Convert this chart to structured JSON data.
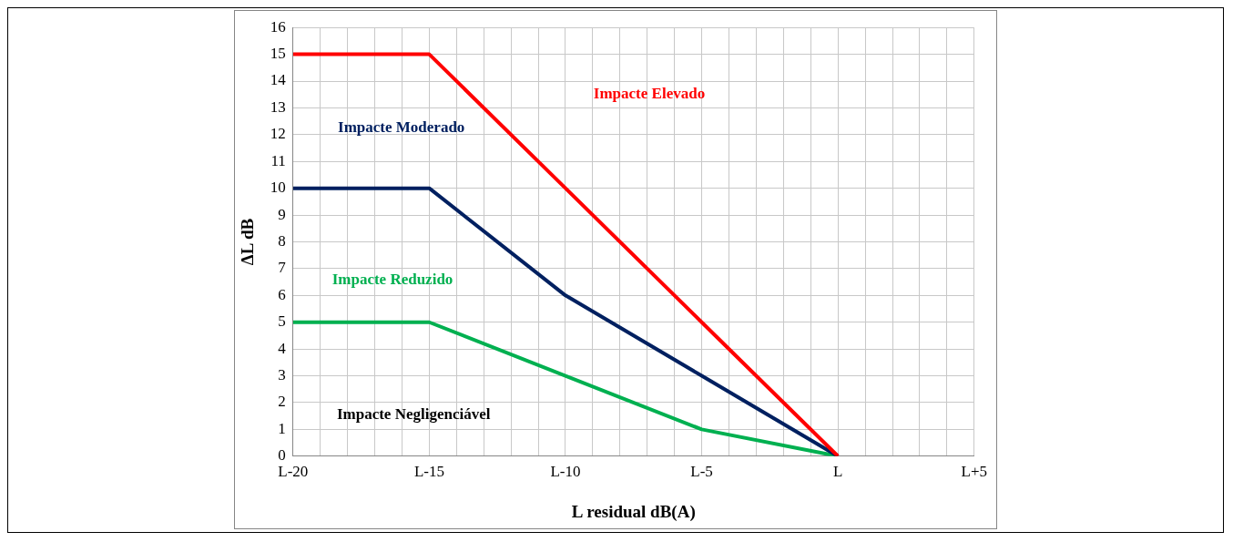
{
  "chart_data": {
    "type": "line",
    "xlabel": "L residual dB(A)",
    "ylabel": "ΔL dB",
    "categories": [
      "L-20",
      "L-15",
      "L-10",
      "L-5",
      "L",
      "L+5"
    ],
    "series": [
      {
        "color": "#ff0000",
        "values": [
          15,
          15,
          10,
          5,
          0,
          null
        ]
      },
      {
        "color": "#002060",
        "values": [
          10,
          10,
          6,
          3,
          0,
          null
        ]
      },
      {
        "color": "#00b050",
        "values": [
          5,
          5,
          3,
          1,
          0,
          null
        ]
      }
    ],
    "ylim": [
      0,
      16
    ],
    "yticks": [
      0,
      1,
      2,
      3,
      4,
      5,
      6,
      7,
      8,
      9,
      10,
      11,
      12,
      13,
      14,
      15,
      16
    ],
    "grid": true,
    "legend": false,
    "marker": "none",
    "line_style": "solid",
    "annotations": [
      "Impacte Elevado",
      "Impacte Moderado",
      "Impacte Reduzido",
      "Impacte Negligenciável"
    ]
  }
}
